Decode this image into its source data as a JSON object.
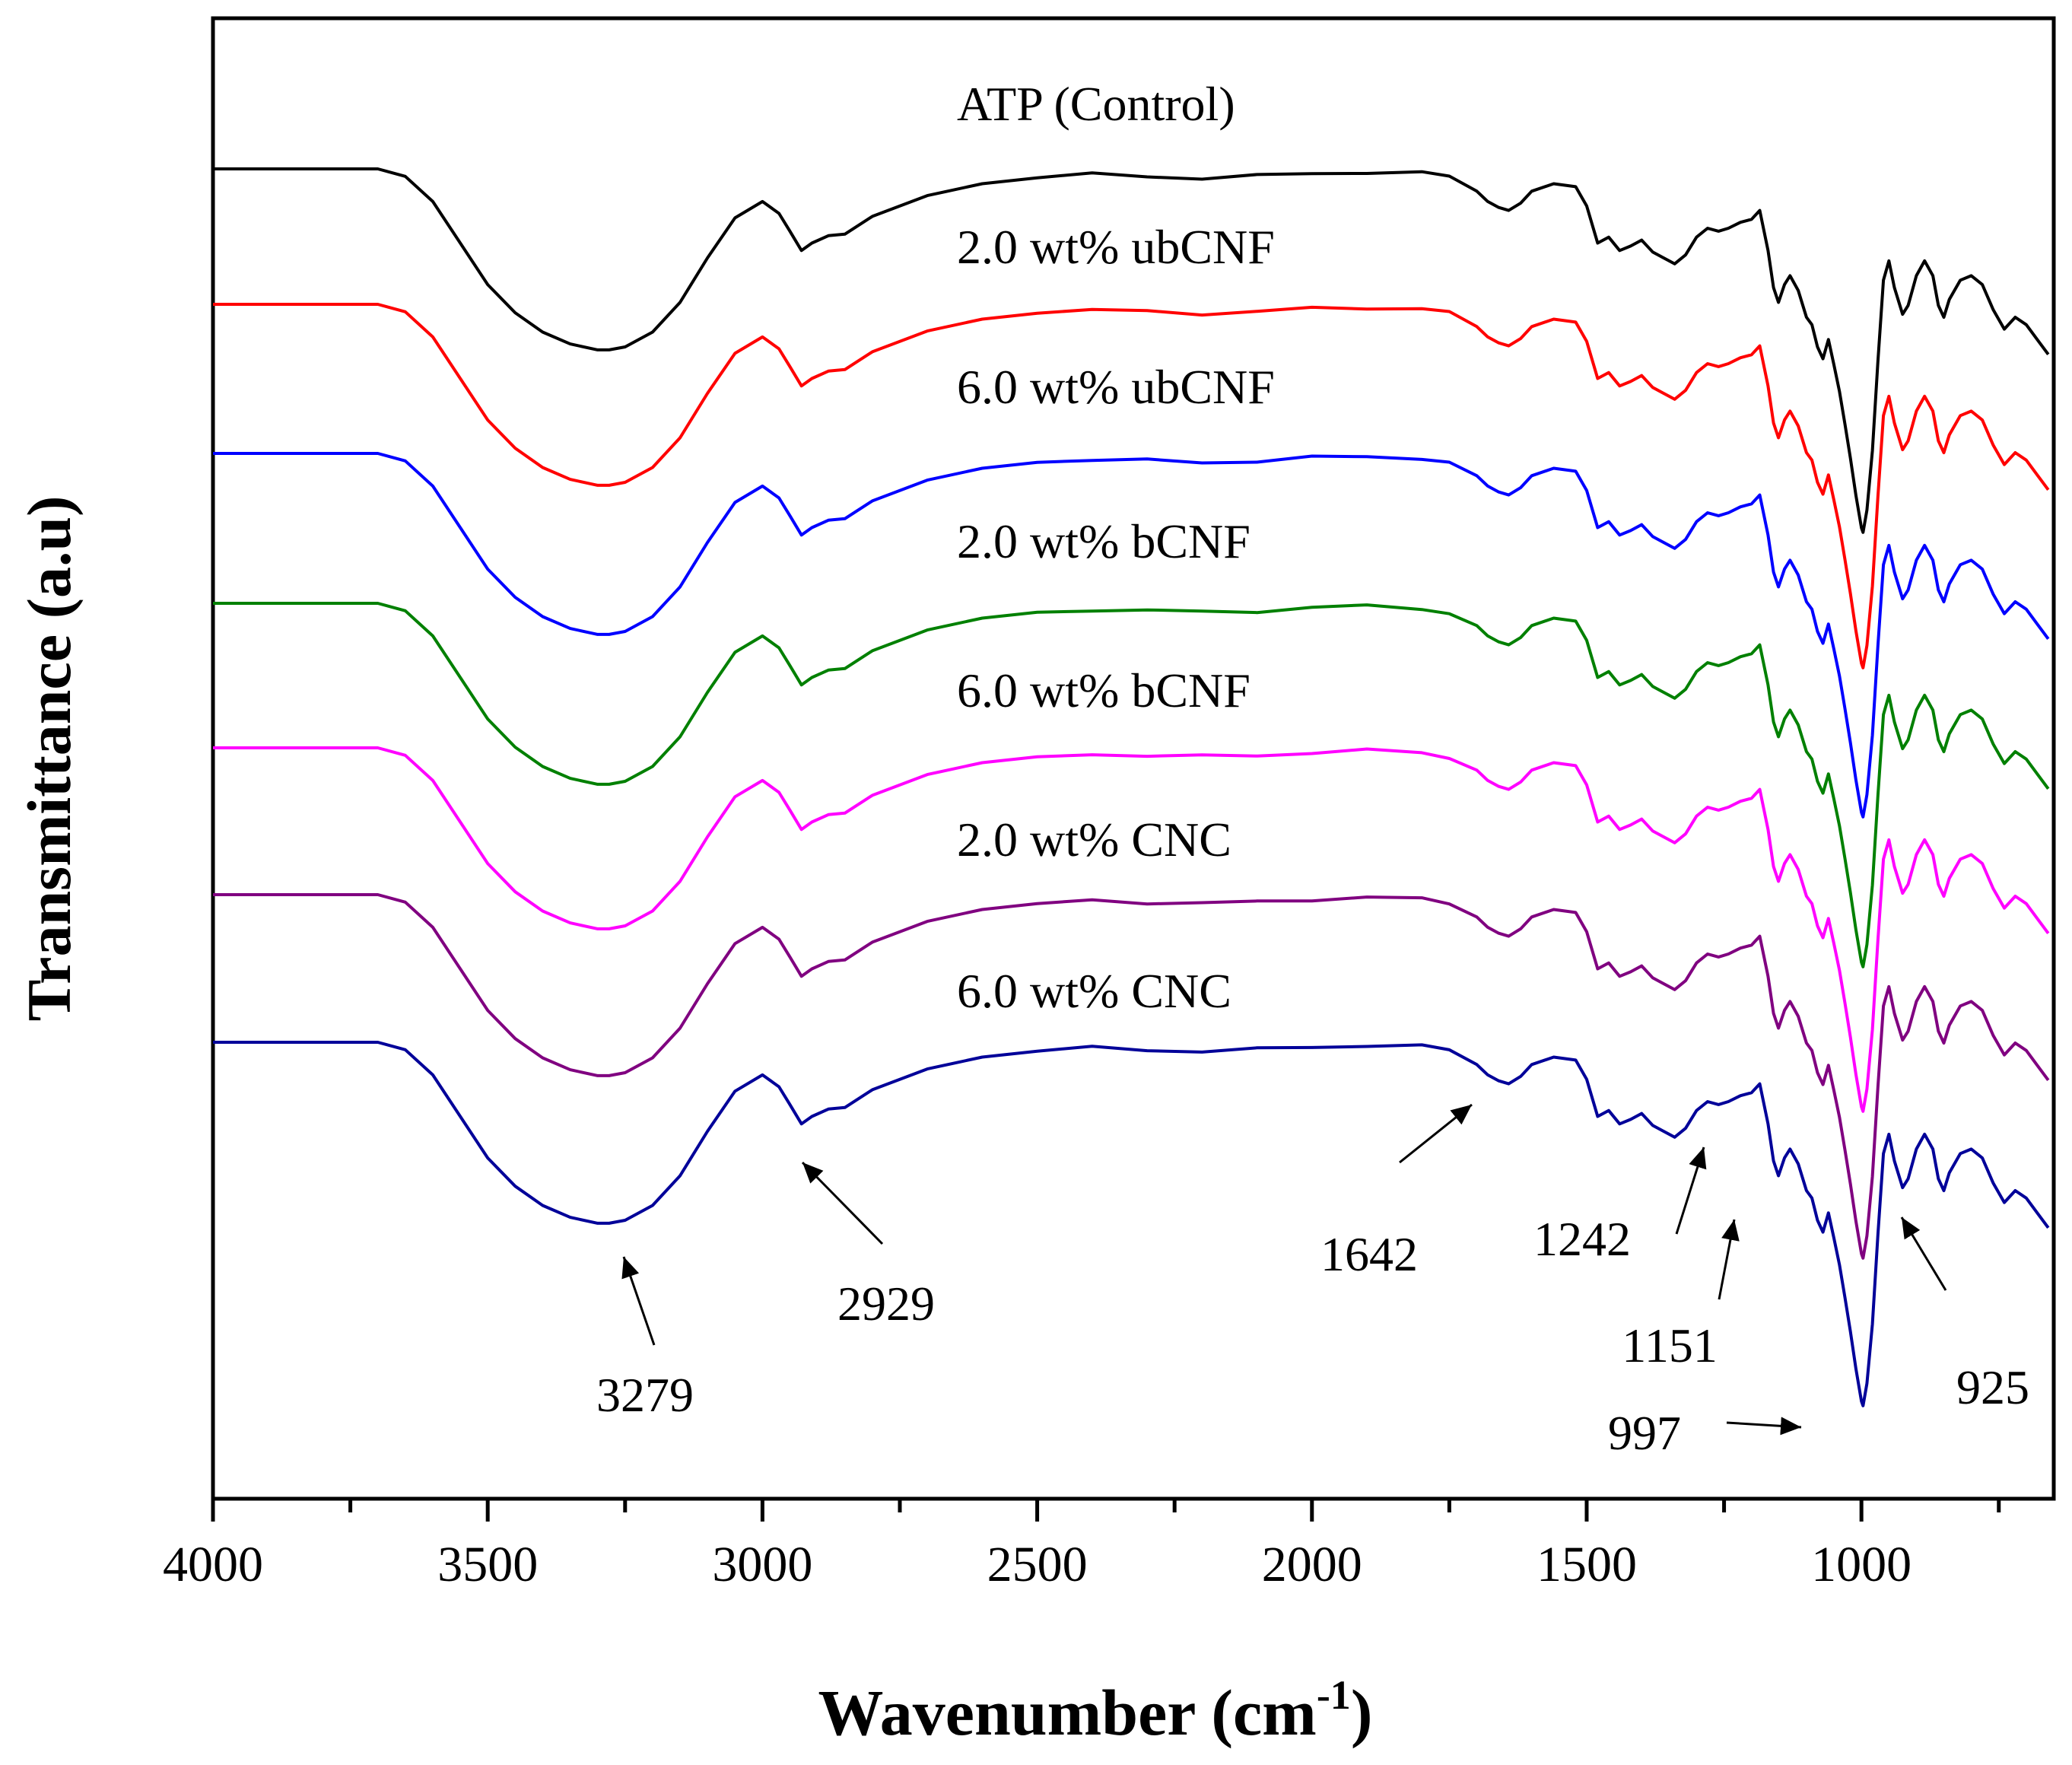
{
  "chart_data": {
    "type": "line",
    "title": "",
    "xlabel": "Wavenumber (cm",
    "xlabel_sup": "-1",
    "xlabel_close": ")",
    "ylabel": "Transmittance (a.u)",
    "xlim": [
      4000,
      650
    ],
    "x_reversed": true,
    "xticks": [
      4000,
      3500,
      3000,
      2500,
      2000,
      1500,
      1000
    ],
    "grid": false,
    "series": [
      {
        "name": "ATP (Control)",
        "label": "ATP (Control)",
        "color": "#000000",
        "order": 0
      },
      {
        "name": "2.0 wt% ubCNF",
        "label": "2.0 wt% ubCNF",
        "color": "#ff0000",
        "order": 1
      },
      {
        "name": "6.0 wt% ubCNF",
        "label": "6.0 wt% ubCNF",
        "color": "#0000ff",
        "order": 2
      },
      {
        "name": "2.0 wt% bCNF",
        "label": "2.0 wt% bCNF",
        "color": "#008000",
        "order": 3
      },
      {
        "name": "6.0 wt% bCNF",
        "label": "6.0 wt% bCNF",
        "color": "#ff00ff",
        "order": 4
      },
      {
        "name": "2.0 wt% CNC",
        "label": "2.0 wt% CNC",
        "color": "#800080",
        "order": 5
      },
      {
        "name": "6.0 wt% CNC",
        "label": "6.0 wt% CNC",
        "color": "#000099",
        "order": 6
      }
    ],
    "spectrum_profile": {
      "x": [
        4000,
        3900,
        3800,
        3700,
        3650,
        3600,
        3550,
        3500,
        3450,
        3400,
        3350,
        3300,
        3279,
        3250,
        3200,
        3150,
        3100,
        3050,
        3000,
        2970,
        2950,
        2929,
        2910,
        2880,
        2850,
        2800,
        2700,
        2600,
        2500,
        2400,
        2300,
        2200,
        2100,
        2000,
        1900,
        1800,
        1750,
        1700,
        1680,
        1660,
        1642,
        1620,
        1600,
        1560,
        1520,
        1500,
        1480,
        1460,
        1440,
        1420,
        1400,
        1380,
        1360,
        1340,
        1320,
        1300,
        1280,
        1260,
        1242,
        1220,
        1200,
        1185,
        1170,
        1160,
        1151,
        1140,
        1130,
        1115,
        1100,
        1090,
        1080,
        1070,
        1060,
        1050,
        1040,
        1030,
        1020,
        1010,
        1000,
        997,
        990,
        980,
        970,
        960,
        950,
        940,
        930,
        925,
        915,
        900,
        885,
        870,
        860,
        850,
        840,
        820,
        800,
        780,
        760,
        740,
        720,
        700,
        680,
        660
      ],
      "y": [
        0.0,
        0.0,
        0.0,
        0.0,
        0.05,
        0.22,
        0.5,
        0.78,
        0.97,
        1.1,
        1.18,
        1.22,
        1.22,
        1.2,
        1.1,
        0.9,
        0.6,
        0.33,
        0.22,
        0.3,
        0.42,
        0.55,
        0.5,
        0.45,
        0.44,
        0.32,
        0.18,
        0.1,
        0.06,
        0.04,
        0.05,
        0.06,
        0.05,
        0.03,
        0.02,
        0.03,
        0.06,
        0.15,
        0.22,
        0.26,
        0.28,
        0.23,
        0.15,
        0.1,
        0.12,
        0.25,
        0.5,
        0.46,
        0.55,
        0.52,
        0.48,
        0.56,
        0.6,
        0.64,
        0.58,
        0.46,
        0.4,
        0.42,
        0.4,
        0.36,
        0.34,
        0.28,
        0.55,
        0.8,
        0.9,
        0.78,
        0.72,
        0.82,
        1.0,
        1.05,
        1.2,
        1.28,
        1.15,
        1.32,
        1.5,
        1.72,
        1.95,
        2.2,
        2.42,
        2.45,
        2.3,
        1.9,
        1.3,
        0.75,
        0.62,
        0.8,
        0.92,
        0.98,
        0.92,
        0.72,
        0.62,
        0.72,
        0.92,
        1.0,
        0.88,
        0.75,
        0.72,
        0.78,
        0.95,
        1.08,
        1.0,
        1.05,
        1.15,
        1.25
      ]
    },
    "annotations": [
      {
        "text": "3279",
        "x": 3279
      },
      {
        "text": "2929",
        "x": 2929
      },
      {
        "text": "1642",
        "x": 1642
      },
      {
        "text": "1242",
        "x": 1242
      },
      {
        "text": "1151",
        "x": 1151
      },
      {
        "text": "997",
        "x": 997
      },
      {
        "text": "925",
        "x": 925
      }
    ]
  }
}
